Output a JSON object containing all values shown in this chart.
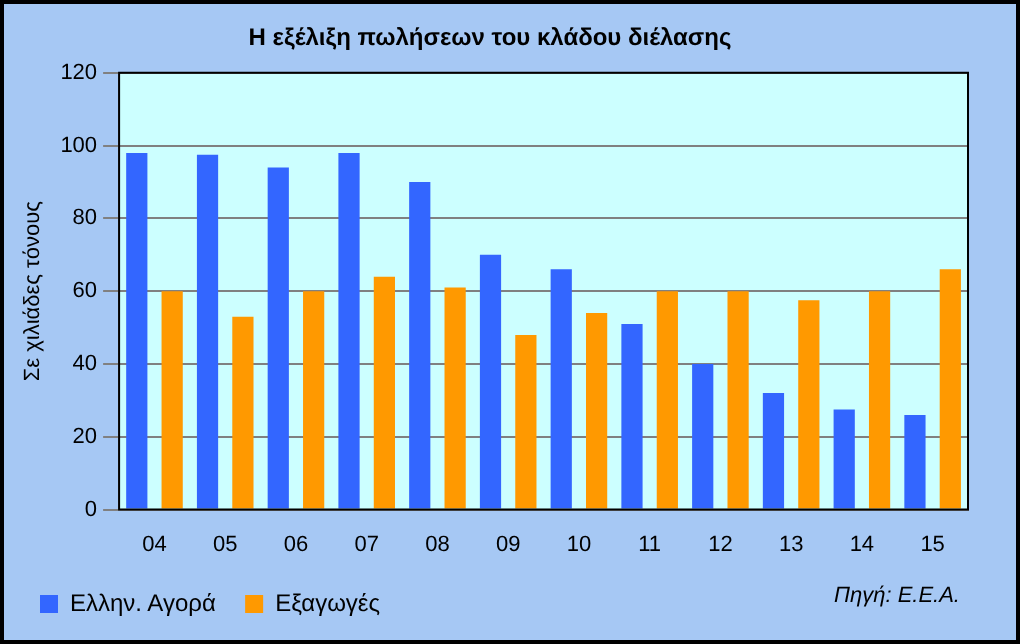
{
  "chart_data": {
    "type": "bar",
    "title": "Η εξέλιξη πωλήσεων του κλάδου διέλασης",
    "ylabel": "Σε χιλιάδες τόνους",
    "categories": [
      "04",
      "05",
      "06",
      "07",
      "08",
      "09",
      "10",
      "11",
      "12",
      "13",
      "14",
      "15"
    ],
    "series": [
      {
        "name": "Ελλην. Αγορά",
        "color": "#3366ff",
        "values": [
          98,
          97.5,
          94,
          98,
          90,
          70,
          66,
          51,
          40,
          32,
          27.5,
          26
        ]
      },
      {
        "name": "Εξαγωγές",
        "color": "#ff9900",
        "values": [
          60,
          53,
          60,
          64,
          61,
          48,
          54,
          60,
          60,
          57.5,
          60,
          66
        ]
      }
    ],
    "ylim": [
      0,
      120
    ],
    "yticks": [
      0,
      20,
      40,
      60,
      80,
      100,
      120
    ],
    "grid": "y",
    "legend": "bottom left",
    "annotations": [
      "Πηγή: Ε.Ε.Α."
    ]
  }
}
